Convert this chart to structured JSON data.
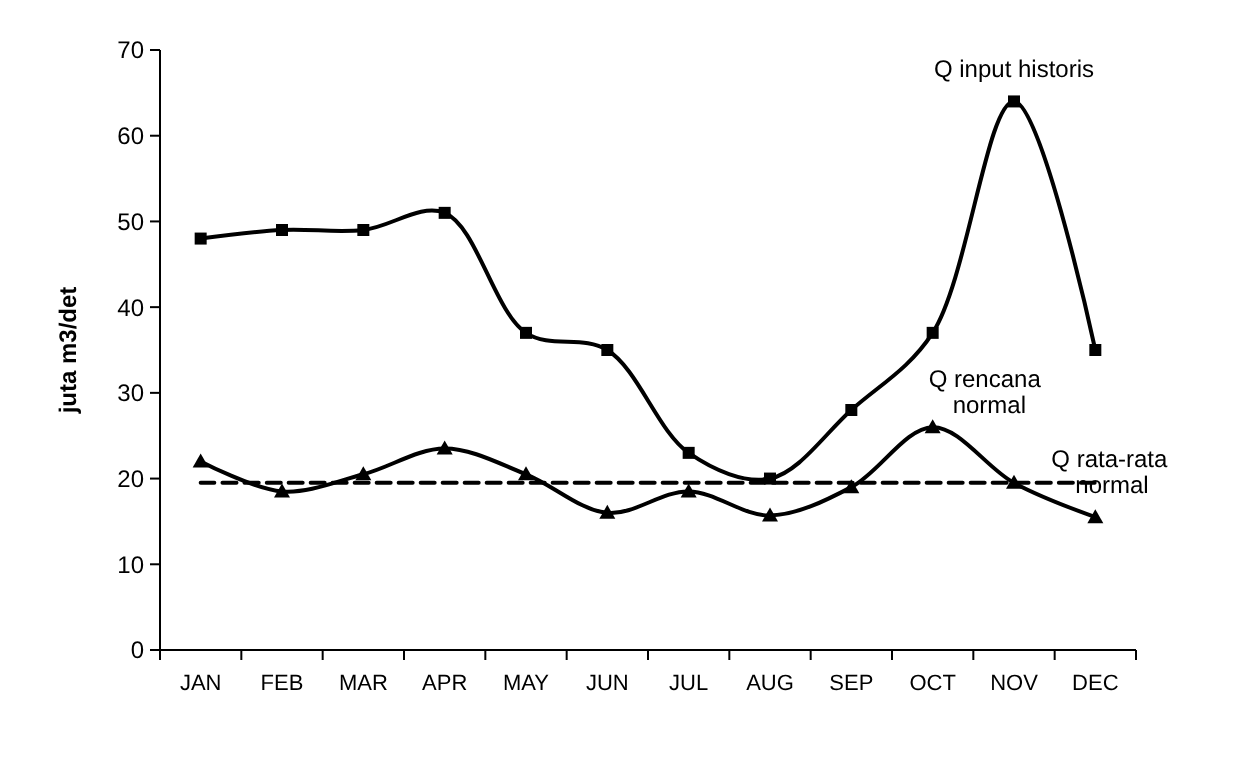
{
  "chart_data": {
    "type": "line",
    "ylabel": "juta m3/det",
    "categories": [
      "JAN",
      "FEB",
      "MAR",
      "APR",
      "MAY",
      "JUN",
      "JUL",
      "AUG",
      "SEP",
      "OCT",
      "NOV",
      "DEC"
    ],
    "ylim": [
      0,
      70
    ],
    "yticks": [
      0,
      10,
      20,
      30,
      40,
      50,
      60,
      70
    ],
    "grid": false,
    "legend": false,
    "series": [
      {
        "name": "Q input historis",
        "color": "#000000",
        "marker": "square",
        "line_style": "solid",
        "values": [
          48,
          49,
          49,
          51,
          37,
          35,
          23,
          20,
          28,
          37,
          64,
          35
        ]
      },
      {
        "name": "Q  rencana normal",
        "color": "#000000",
        "marker": "triangle",
        "line_style": "solid",
        "values": [
          22,
          18.5,
          20.5,
          23.5,
          20.5,
          16,
          18.5,
          15.7,
          19,
          26,
          19.5,
          15.5
        ]
      },
      {
        "name": "Q rata-rata normal",
        "color": "#000000",
        "marker": "none",
        "line_style": "dashed",
        "values": [
          19.5,
          19.5,
          19.5,
          19.5,
          19.5,
          19.5,
          19.5,
          19.5,
          19.5,
          19.5,
          19.5,
          19.5
        ]
      }
    ]
  }
}
